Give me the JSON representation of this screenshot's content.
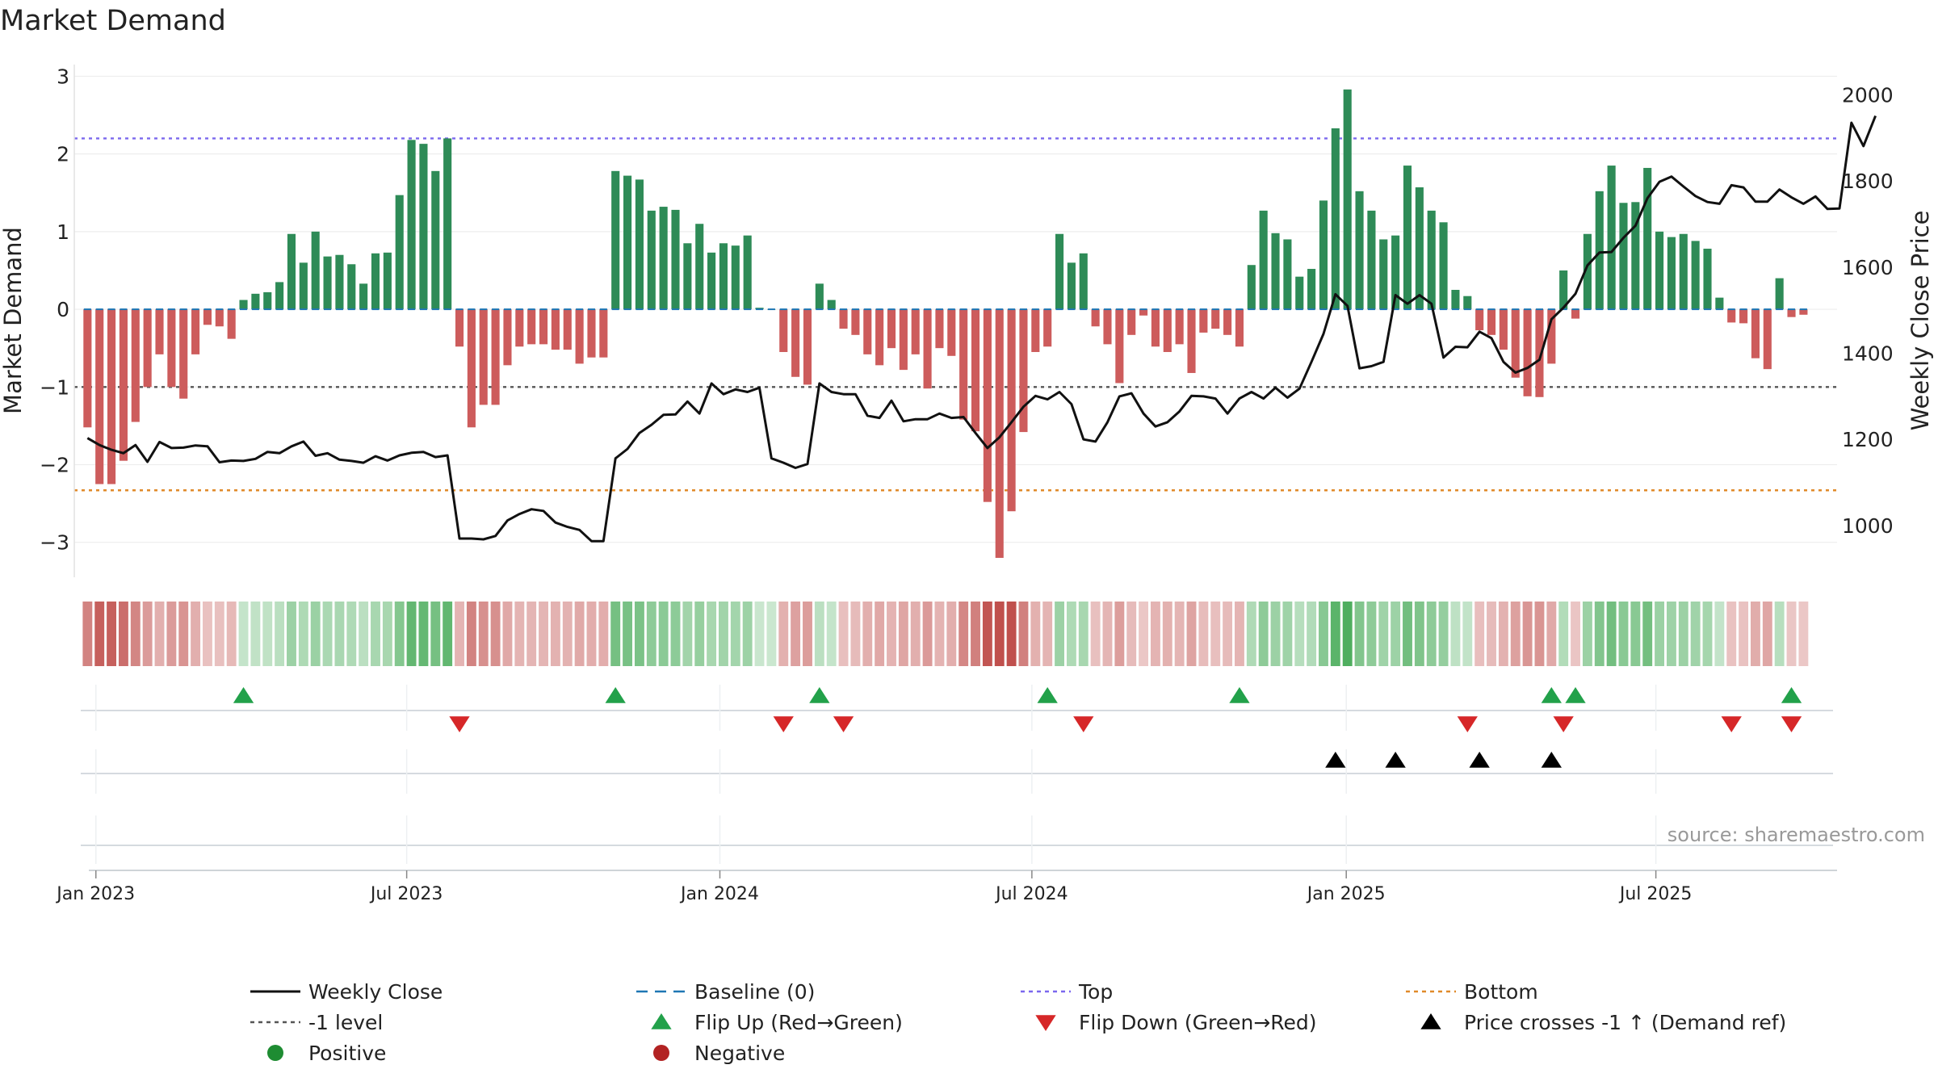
{
  "chart_data": {
    "type": "bar",
    "title": "Market Demand",
    "ylabel": "Market Demand",
    "y2label": "Weekly Close Price",
    "ylim": [
      -3.45,
      3.15
    ],
    "y2lim": [
      880,
      2070
    ],
    "yticks": [
      "3",
      "2",
      "1",
      "0",
      "−1",
      "−2",
      "−3"
    ],
    "ytick_values": [
      3,
      2,
      1,
      0,
      -1,
      -2,
      -3
    ],
    "y2ticks": [
      "2000",
      "1800",
      "1600",
      "1400",
      "1200",
      "1000"
    ],
    "y2tick_values": [
      2000,
      1800,
      1600,
      1400,
      1200,
      1000
    ],
    "x_start": "2022-12-28",
    "x_step_days": 7,
    "xlim_weeks": [
      -1.1,
      145.8
    ],
    "xticks": [
      {
        "label": "Jan 2023",
        "week": 0.7
      },
      {
        "label": "Jul 2023",
        "week": 26.6
      },
      {
        "label": "Jan 2024",
        "week": 52.7
      },
      {
        "label": "Jul 2024",
        "week": 78.7
      },
      {
        "label": "Jan 2025",
        "week": 104.9
      },
      {
        "label": "Jul 2025",
        "week": 130.7
      }
    ],
    "reference_lines": {
      "top": 2.2,
      "bottom": -2.33,
      "minus_one": -1,
      "baseline": 0
    },
    "demand": [
      -1.52,
      -2.25,
      -2.25,
      -1.95,
      -1.45,
      -1.0,
      -0.58,
      -1.0,
      -1.15,
      -0.58,
      -0.2,
      -0.22,
      -0.38,
      0.12,
      0.2,
      0.22,
      0.35,
      0.97,
      0.6,
      1.0,
      0.68,
      0.7,
      0.58,
      0.33,
      0.72,
      0.73,
      1.47,
      2.18,
      2.13,
      1.78,
      2.2,
      -0.48,
      -1.52,
      -1.23,
      -1.23,
      -0.72,
      -0.48,
      -0.45,
      -0.45,
      -0.52,
      -0.52,
      -0.7,
      -0.62,
      -0.62,
      1.78,
      1.72,
      1.67,
      1.27,
      1.32,
      1.28,
      0.85,
      1.1,
      0.73,
      0.85,
      0.82,
      0.95,
      0.02,
      0.0,
      -0.55,
      -0.87,
      -0.97,
      0.33,
      0.12,
      -0.25,
      -0.33,
      -0.58,
      -0.72,
      -0.5,
      -0.78,
      -0.58,
      -1.02,
      -0.5,
      -0.6,
      -1.42,
      -1.57,
      -2.48,
      -3.2,
      -2.6,
      -1.58,
      -0.55,
      -0.48,
      0.97,
      0.6,
      0.72,
      -0.22,
      -0.45,
      -0.95,
      -0.33,
      -0.08,
      -0.48,
      -0.55,
      -0.45,
      -0.82,
      -0.3,
      -0.25,
      -0.33,
      -0.48,
      0.57,
      1.27,
      0.98,
      0.9,
      0.42,
      0.52,
      1.4,
      2.33,
      2.83,
      1.52,
      1.27,
      0.9,
      0.95,
      1.85,
      1.57,
      1.27,
      1.12,
      0.25,
      0.17,
      -0.27,
      -0.33,
      -0.52,
      -0.88,
      -1.12,
      -1.13,
      -0.7,
      0.5,
      -0.12,
      0.97,
      1.52,
      1.85,
      1.37,
      1.38,
      1.82,
      1.0,
      0.93,
      0.97,
      0.88,
      0.78,
      0.15,
      -0.17,
      -0.18,
      -0.63,
      -0.77,
      0.4,
      -0.1,
      -0.07
    ],
    "price": [
      1203,
      1187,
      1176,
      1168,
      1187,
      1148,
      1194,
      1180,
      1181,
      1186,
      1184,
      1147,
      1151,
      1150,
      1155,
      1171,
      1168,
      1184,
      1195,
      1162,
      1168,
      1153,
      1150,
      1146,
      1161,
      1151,
      1163,
      1169,
      1171,
      1159,
      1163,
      970,
      970,
      968,
      976,
      1012,
      1027,
      1038,
      1034,
      1007,
      997,
      990,
      964,
      964,
      1156,
      1178,
      1215,
      1234,
      1257,
      1258,
      1288,
      1260,
      1330,
      1305,
      1316,
      1310,
      1320,
      1156,
      1146,
      1134,
      1143,
      1330,
      1310,
      1305,
      1305,
      1255,
      1250,
      1290,
      1242,
      1247,
      1247,
      1260,
      1250,
      1252,
      1215,
      1180,
      1205,
      1240,
      1276,
      1301,
      1293,
      1310,
      1282,
      1200,
      1195,
      1240,
      1300,
      1307,
      1260,
      1230,
      1240,
      1265,
      1301,
      1300,
      1295,
      1260,
      1295,
      1310,
      1295,
      1320,
      1297,
      1318,
      1380,
      1445,
      1537,
      1510,
      1365,
      1370,
      1380,
      1535,
      1515,
      1535,
      1515,
      1390,
      1415,
      1414,
      1450,
      1435,
      1380,
      1355,
      1366,
      1385,
      1479,
      1506,
      1538,
      1604,
      1634,
      1635,
      1668,
      1696,
      1760,
      1798,
      1810,
      1787,
      1765,
      1751,
      1747,
      1790,
      1785,
      1752,
      1752,
      1780,
      1762,
      1747,
      1764,
      1735,
      1736,
      1935,
      1881,
      1951
    ],
    "flip_up_weeks": [
      13,
      44,
      61,
      80,
      96,
      122,
      124,
      142
    ],
    "flip_down_weeks": [
      31,
      58,
      63,
      83,
      115,
      123,
      137,
      142
    ],
    "cross_weeks": [
      104,
      109,
      116,
      122
    ],
    "legend": [
      {
        "label": "Weekly Close",
        "symbol": "line",
        "color": "#111111"
      },
      {
        "label": "Baseline (0)",
        "symbol": "dashline",
        "color": "#1f77b4"
      },
      {
        "label": "Top",
        "symbol": "dotline",
        "color": "#7b68ee"
      },
      {
        "label": "Bottom",
        "symbol": "dotline",
        "color": "#e08a2a"
      },
      {
        "label": "-1 level",
        "symbol": "dotline",
        "color": "#555555"
      },
      {
        "label": "Flip Up (Red→Green)",
        "symbol": "tri-up",
        "color": "#22a14a"
      },
      {
        "label": "Flip Down (Green→Red)",
        "symbol": "tri-down",
        "color": "#d62728"
      },
      {
        "label": "Price crosses -1 ↑ (Demand ref)",
        "symbol": "tri-up",
        "color": "#000000"
      },
      {
        "label": "Positive",
        "symbol": "dot",
        "color": "#1e8c32"
      },
      {
        "label": "Negative",
        "symbol": "dot",
        "color": "#b22222"
      }
    ],
    "source": "source: sharemaestro.com"
  },
  "colors": {
    "positive": "#2e8b57",
    "negative": "#cd5c5c",
    "strip_positive": "#4fae5f",
    "strip_negative": "#c0504d",
    "price_line": "#111111",
    "baseline": "#1f77b4",
    "top": "#7b68ee",
    "bottom": "#e08a2a",
    "minus_one": "#555555",
    "flip_up": "#22a14a",
    "flip_down": "#d62728",
    "cross": "#000000"
  }
}
